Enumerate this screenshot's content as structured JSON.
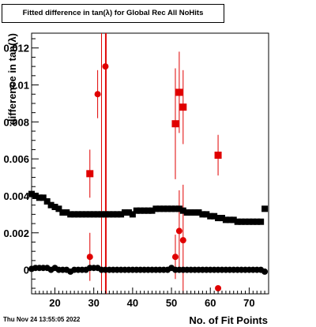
{
  "title": "Fitted difference in tan(λ) for Global Rec All NoHits",
  "timestamp": "Thu Nov 24 13:55:05 2022",
  "chart_data": {
    "type": "scatter",
    "title": "Fitted difference in tan(λ) for Global Rec All NoHits",
    "xlabel": "No. of Fit Points",
    "ylabel": "difference in tan(λ)",
    "xlim": [
      14,
      75
    ],
    "ylim": [
      -0.0013,
      0.0128
    ],
    "xticks": [
      20,
      30,
      40,
      50,
      60,
      70
    ],
    "yticks": [
      0,
      0.002,
      0.004,
      0.006,
      0.008,
      0.01,
      0.012
    ],
    "ytick_labels": [
      "0",
      "0.002",
      "0.004",
      "0.006",
      "0.008",
      "0.01",
      "0.012"
    ],
    "grid": false,
    "series": [
      {
        "marker": "square",
        "color": "#000000",
        "x": [
          14,
          15,
          16,
          17,
          18,
          19,
          20,
          21,
          22,
          23,
          24,
          25,
          26,
          27,
          28,
          29,
          30,
          31,
          32,
          33,
          34,
          35,
          36,
          37,
          38,
          39,
          40,
          41,
          42,
          43,
          44,
          45,
          46,
          47,
          48,
          49,
          50,
          51,
          52,
          53,
          54,
          55,
          56,
          57,
          58,
          59,
          60,
          61,
          62,
          63,
          64,
          65,
          66,
          67,
          68,
          69,
          70,
          71,
          72,
          73,
          74
        ],
        "y": [
          0.0041,
          0.004,
          0.0039,
          0.0039,
          0.0037,
          0.0035,
          0.0034,
          0.0033,
          0.0031,
          0.0031,
          0.003,
          0.003,
          0.003,
          0.003,
          0.003,
          0.003,
          0.003,
          0.003,
          0.003,
          0.003,
          0.003,
          0.003,
          0.003,
          0.003,
          0.0031,
          0.0031,
          0.003,
          0.0032,
          0.0032,
          0.0032,
          0.0032,
          0.0032,
          0.0033,
          0.0033,
          0.0033,
          0.0033,
          0.0033,
          0.0033,
          0.0033,
          0.0032,
          0.0031,
          0.0031,
          0.0031,
          0.0031,
          0.003,
          0.003,
          0.0029,
          0.0029,
          0.0028,
          0.0028,
          0.0027,
          0.0027,
          0.0027,
          0.0026,
          0.0026,
          0.0026,
          0.0026,
          0.0026,
          0.0026,
          0.0026,
          0.0033
        ]
      },
      {
        "marker": "circle",
        "color": "#000000",
        "x": [
          14,
          15,
          16,
          17,
          18,
          19,
          20,
          21,
          22,
          23,
          24,
          25,
          26,
          27,
          28,
          29,
          30,
          31,
          32,
          33,
          34,
          35,
          36,
          37,
          38,
          39,
          40,
          41,
          42,
          43,
          44,
          45,
          46,
          47,
          48,
          49,
          50,
          51,
          52,
          53,
          54,
          55,
          56,
          57,
          58,
          59,
          60,
          61,
          62,
          63,
          64,
          65,
          66,
          67,
          68,
          69,
          70,
          71,
          72,
          73,
          74
        ],
        "y": [
          5e-05,
          0.0001,
          0.0001,
          0.0001,
          0.0001,
          0.0,
          0.0001,
          0.0,
          0.0,
          0.0,
          -0.0001,
          0.0,
          0.0,
          0.0,
          0.0,
          0.0001,
          0.0001,
          0.0001,
          0.0,
          0.0,
          0.0,
          0.0,
          0.0,
          0.0,
          0.0,
          0.0,
          0.0,
          0.0,
          0.0,
          0.0,
          0.0,
          0.0,
          0.0,
          0.0,
          0.0,
          0.0,
          0.0001,
          0.0,
          0.0,
          0.0,
          0.0,
          0.0,
          0.0,
          0.0,
          0.0,
          0.0,
          0.0,
          0.0,
          0.0,
          0.0,
          0.0,
          0.0,
          0.0,
          0.0,
          0.0,
          0.0,
          0.0,
          0.0,
          0.0,
          0.0,
          -0.0001
        ]
      },
      {
        "marker": "square",
        "color": "#e00000",
        "x": [
          29,
          51,
          52,
          53,
          62
        ],
        "y": [
          0.0052,
          0.0079,
          0.0096,
          0.0088,
          0.0062
        ],
        "err": [
          0.0013,
          0.003,
          0.0022,
          0.002,
          0.0011
        ]
      },
      {
        "marker": "circle",
        "color": "#e00000",
        "x": [
          29,
          31,
          33,
          51,
          52,
          53,
          62
        ],
        "y": [
          0.0007,
          0.0095,
          0.011,
          0.0007,
          0.0021,
          0.0016,
          -0.001
        ],
        "err": [
          0.0013,
          0.0013,
          0.013,
          0.0012,
          0.0022,
          0.003,
          0.0
        ]
      }
    ],
    "vertical_lines": [
      32.0,
      33.2
    ]
  }
}
